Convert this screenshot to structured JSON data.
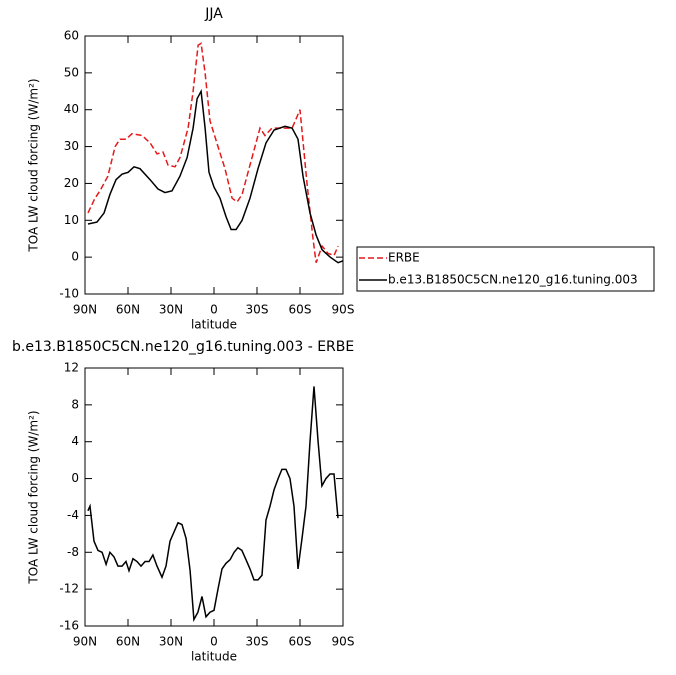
{
  "chart_data": [
    {
      "type": "line",
      "title": "JJA",
      "ylabel": "TOA LW cloud forcing (W/m²)",
      "xlabel": "latitude",
      "xlim": [
        90,
        -90
      ],
      "xticks": [
        {
          "value": 90,
          "label": "90N"
        },
        {
          "value": 60,
          "label": "60N"
        },
        {
          "value": 30,
          "label": "30N"
        },
        0,
        {
          "value": -30,
          "label": "30S"
        },
        {
          "value": -60,
          "label": "60S"
        },
        {
          "value": -90,
          "label": "90S"
        }
      ],
      "ylim": [
        -10,
        60
      ],
      "yticks": [
        -10,
        0,
        10,
        20,
        30,
        40,
        50,
        60
      ],
      "legend": "right",
      "series": [
        {
          "name": "ERBE",
          "color": "#e41a1c",
          "dash": true,
          "x": [
            87.9,
            83,
            79.5,
            74,
            69,
            65.6,
            61.4,
            57.2,
            50.2,
            44.6,
            39.8,
            35.6,
            32.1,
            27.2,
            23.7,
            18.1,
            14.6,
            11.1,
            9,
            6.2,
            2.8,
            -2.8,
            -7.7,
            -12.6,
            -16.1,
            -19.6,
            -25.1,
            -32.1,
            -35.6,
            -40.5,
            -49.6,
            -54.5,
            -60,
            -64.9,
            -69.1,
            -71.2,
            -75.4,
            -79.6,
            -83.8,
            -86.6
          ],
          "values": [
            12,
            16,
            18,
            22,
            30,
            32,
            32,
            33.5,
            33,
            31,
            28,
            28.5,
            25,
            24.5,
            27,
            35,
            45,
            57.5,
            58,
            50,
            37,
            30,
            24,
            16,
            15,
            17,
            25,
            35,
            33,
            35,
            35,
            35,
            40,
            20,
            5,
            -1.5,
            3,
            1,
            0.5,
            3
          ]
        },
        {
          "name": "b.e13.B1850C5CN.ne120_g16.tuning.003",
          "color": "#000000",
          "dash": false,
          "x": [
            87.9,
            81.6,
            76.7,
            72.6,
            68.4,
            64.2,
            60,
            55.8,
            51.6,
            44.6,
            39.1,
            34.2,
            29.3,
            23.7,
            18.8,
            14.6,
            11.8,
            9,
            6.2,
            3.5,
            0,
            -4.2,
            -8.4,
            -11.9,
            -15.4,
            -19.6,
            -25.1,
            -30.7,
            -36.3,
            -41.9,
            -49.6,
            -54.5,
            -58.6,
            -62.1,
            -67,
            -71.2,
            -75.4,
            -81,
            -86.6,
            -90
          ],
          "values": [
            9,
            9.5,
            12,
            17,
            21,
            22.5,
            23,
            24.5,
            24,
            21,
            18.5,
            17.5,
            18,
            22,
            27,
            35,
            43,
            45,
            35,
            23,
            19,
            16,
            11,
            7.5,
            7.5,
            10,
            16,
            24,
            31,
            34.5,
            35.5,
            35,
            32,
            22,
            12,
            6,
            2,
            0,
            -1.5,
            -1
          ]
        }
      ]
    },
    {
      "type": "line",
      "title": "b.e13.B1850C5CN.ne120_g16.tuning.003 - ERBE",
      "ylabel": "TOA LW cloud forcing (W/m²)",
      "xlabel": "latitude",
      "xlim": [
        90,
        -90
      ],
      "xticks": [
        {
          "value": 90,
          "label": "90N"
        },
        {
          "value": 60,
          "label": "60N"
        },
        {
          "value": 30,
          "label": "30N"
        },
        0,
        {
          "value": -30,
          "label": "30S"
        },
        {
          "value": -60,
          "label": "60S"
        },
        {
          "value": -90,
          "label": "90S"
        }
      ],
      "ylim": [
        -16,
        12
      ],
      "yticks": [
        -16,
        -12,
        -8,
        -4,
        0,
        4,
        8,
        12
      ],
      "series": [
        {
          "color": "#000000",
          "dash": false,
          "x": [
            88,
            86.5,
            83.7,
            80.9,
            78.1,
            75.3,
            72.6,
            69.8,
            67.0,
            64.2,
            61.4,
            59.3,
            56.5,
            53.7,
            50.9,
            48.1,
            45.3,
            42.6,
            39.8,
            36.3,
            33.5,
            30.7,
            27.9,
            25.1,
            22.3,
            19.5,
            16.7,
            14.0,
            11.2,
            8.4,
            5.6,
            2.8,
            0,
            -2.8,
            -5.6,
            -8.4,
            -11.2,
            -14.0,
            -16.7,
            -19.5,
            -22.3,
            -25.1,
            -27.9,
            -30.7,
            -33.5,
            -36.3,
            -39.1,
            -41.9,
            -44.7,
            -47.4,
            -50.2,
            -53.0,
            -55.8,
            -58.6,
            -61.4,
            -64.2,
            -67.0,
            -69.8,
            -72.6,
            -75.3,
            -78.1,
            -80.9,
            -83.7,
            -86.5
          ],
          "values": [
            -3.5,
            -3,
            -6.8,
            -7.8,
            -8,
            -9.3,
            -8,
            -8.5,
            -9.5,
            -9.5,
            -9,
            -10,
            -8.7,
            -9,
            -9.5,
            -9,
            -9,
            -8.3,
            -9.5,
            -10.7,
            -9.5,
            -6.8,
            -5.8,
            -4.8,
            -5,
            -6.5,
            -10,
            -15.3,
            -14.5,
            -12.8,
            -15,
            -14.5,
            -14.3,
            -12,
            -9.8,
            -9.2,
            -8.8,
            -8,
            -7.5,
            -7.8,
            -8.8,
            -9.8,
            -11,
            -11,
            -10.5,
            -4.5,
            -3,
            -1.2,
            0,
            1,
            1,
            0,
            -3,
            -9.8,
            -6.5,
            -3,
            4,
            10,
            4,
            -0.8,
            0,
            0.5,
            0.5,
            -4.3
          ]
        }
      ]
    }
  ]
}
